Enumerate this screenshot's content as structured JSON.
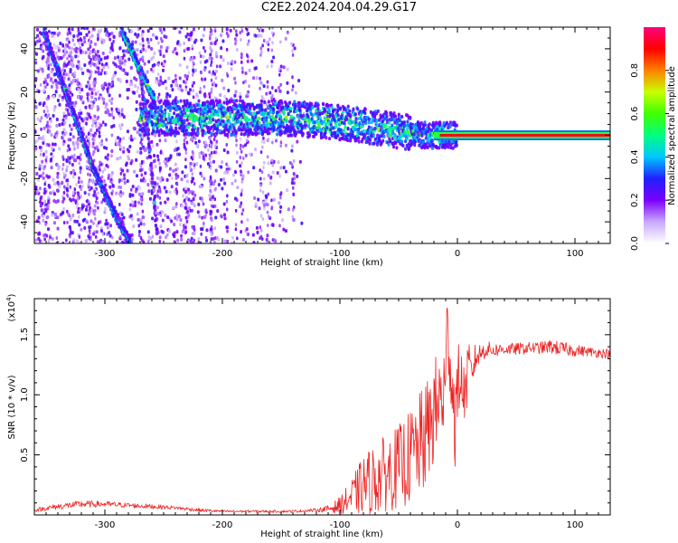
{
  "figure": {
    "title": "C2E2.2024.204.04.29.G17"
  },
  "chart_data": [
    {
      "type": "heatmap",
      "title": "C2E2.2024.204.04.29.G17",
      "xlabel": "Height of straight line (km)",
      "ylabel": "Frequency (Hz)",
      "xlim": [
        -360,
        130
      ],
      "ylim": [
        -50,
        50
      ],
      "x_ticks": [
        -300,
        -200,
        -100,
        0,
        100
      ],
      "y_ticks": [
        -40,
        -20,
        0,
        20,
        40
      ],
      "colorbar": {
        "label": "Normalized spectral amplitude",
        "range": [
          0,
          1
        ],
        "ticks": [
          "0.0",
          "0.2",
          "0.4",
          "0.6",
          "0.8"
        ],
        "colormap": [
          "#ffffff",
          "#c8a8ff",
          "#7a00ff",
          "#2020ff",
          "#00c8ff",
          "#00ff80",
          "#40ff00",
          "#c8ff00",
          "#ff8000",
          "#ff0000",
          "#ff0080"
        ]
      },
      "features": [
        {
          "name": "main carrier line",
          "x": [
            -270,
            -200,
            -150,
            -100,
            -60,
            -30,
            0,
            130
          ],
          "y": [
            8,
            8,
            8,
            6,
            3,
            0,
            0,
            0
          ],
          "amplitude": 0.95
        },
        {
          "name": "left diagonal band",
          "x": [
            -352,
            -330,
            -310,
            -290,
            -278
          ],
          "y": [
            48,
            15,
            -15,
            -38,
            -50
          ],
          "amplitude": 0.35
        },
        {
          "name": "upper diagonal band",
          "x": [
            -285,
            -270,
            -258
          ],
          "y": [
            48,
            30,
            17
          ],
          "amplitude": 0.45
        },
        {
          "name": "steep diagonal",
          "x": [
            -270,
            -263,
            -255
          ],
          "y": [
            30,
            0,
            -48
          ],
          "amplitude": 0.25
        }
      ]
    },
    {
      "type": "line",
      "title": "",
      "xlabel": "Height of straight line (km)",
      "ylabel": "SNR (10 * v/v)",
      "y_multiplier_label": "(x10",
      "y_multiplier_exp": "4",
      "y_multiplier_close": ")",
      "xlim": [
        -360,
        130
      ],
      "ylim": [
        0,
        18000
      ],
      "x_ticks": [
        -300,
        -200,
        -100,
        0,
        100
      ],
      "y_ticks": [
        5000,
        10000,
        15000
      ],
      "y_tick_labels": [
        "0.5",
        "1.0",
        "1.5"
      ],
      "series": [
        {
          "name": "SNR",
          "color": "#ee2222",
          "x": [
            -360,
            -340,
            -320,
            -300,
            -280,
            -260,
            -240,
            -220,
            -200,
            -180,
            -160,
            -140,
            -120,
            -110,
            -100,
            -90,
            -80,
            -70,
            -60,
            -50,
            -40,
            -30,
            -25,
            -20,
            -15,
            -10,
            -8,
            -5,
            -2,
            0,
            2,
            5,
            8,
            10,
            12,
            15,
            20,
            25,
            30,
            40,
            50,
            60,
            70,
            80,
            90,
            100,
            110,
            120,
            130
          ],
          "values": [
            400,
            700,
            900,
            900,
            800,
            700,
            600,
            400,
            300,
            300,
            300,
            300,
            400,
            500,
            800,
            1500,
            2500,
            3000,
            3500,
            4000,
            4800,
            6000,
            7000,
            8500,
            9500,
            10500,
            17000,
            11000,
            8000,
            10000,
            12000,
            10000,
            11000,
            12500,
            11500,
            13000,
            13500,
            13800,
            13700,
            13800,
            13800,
            13900,
            13900,
            14000,
            13800,
            13700,
            13600,
            13500,
            13400
          ],
          "noise": [
            150,
            250,
            300,
            250,
            200,
            200,
            150,
            150,
            100,
            100,
            100,
            100,
            150,
            300,
            700,
            1500,
            2500,
            3000,
            3200,
            3500,
            4000,
            4500,
            4500,
            4500,
            4500,
            4500,
            5000,
            4500,
            4000,
            3500,
            3000,
            2500,
            2500,
            2000,
            1500,
            1200,
            800,
            700,
            600,
            500,
            500,
            500,
            500,
            600,
            600,
            500,
            400,
            400,
            400
          ]
        }
      ]
    }
  ]
}
